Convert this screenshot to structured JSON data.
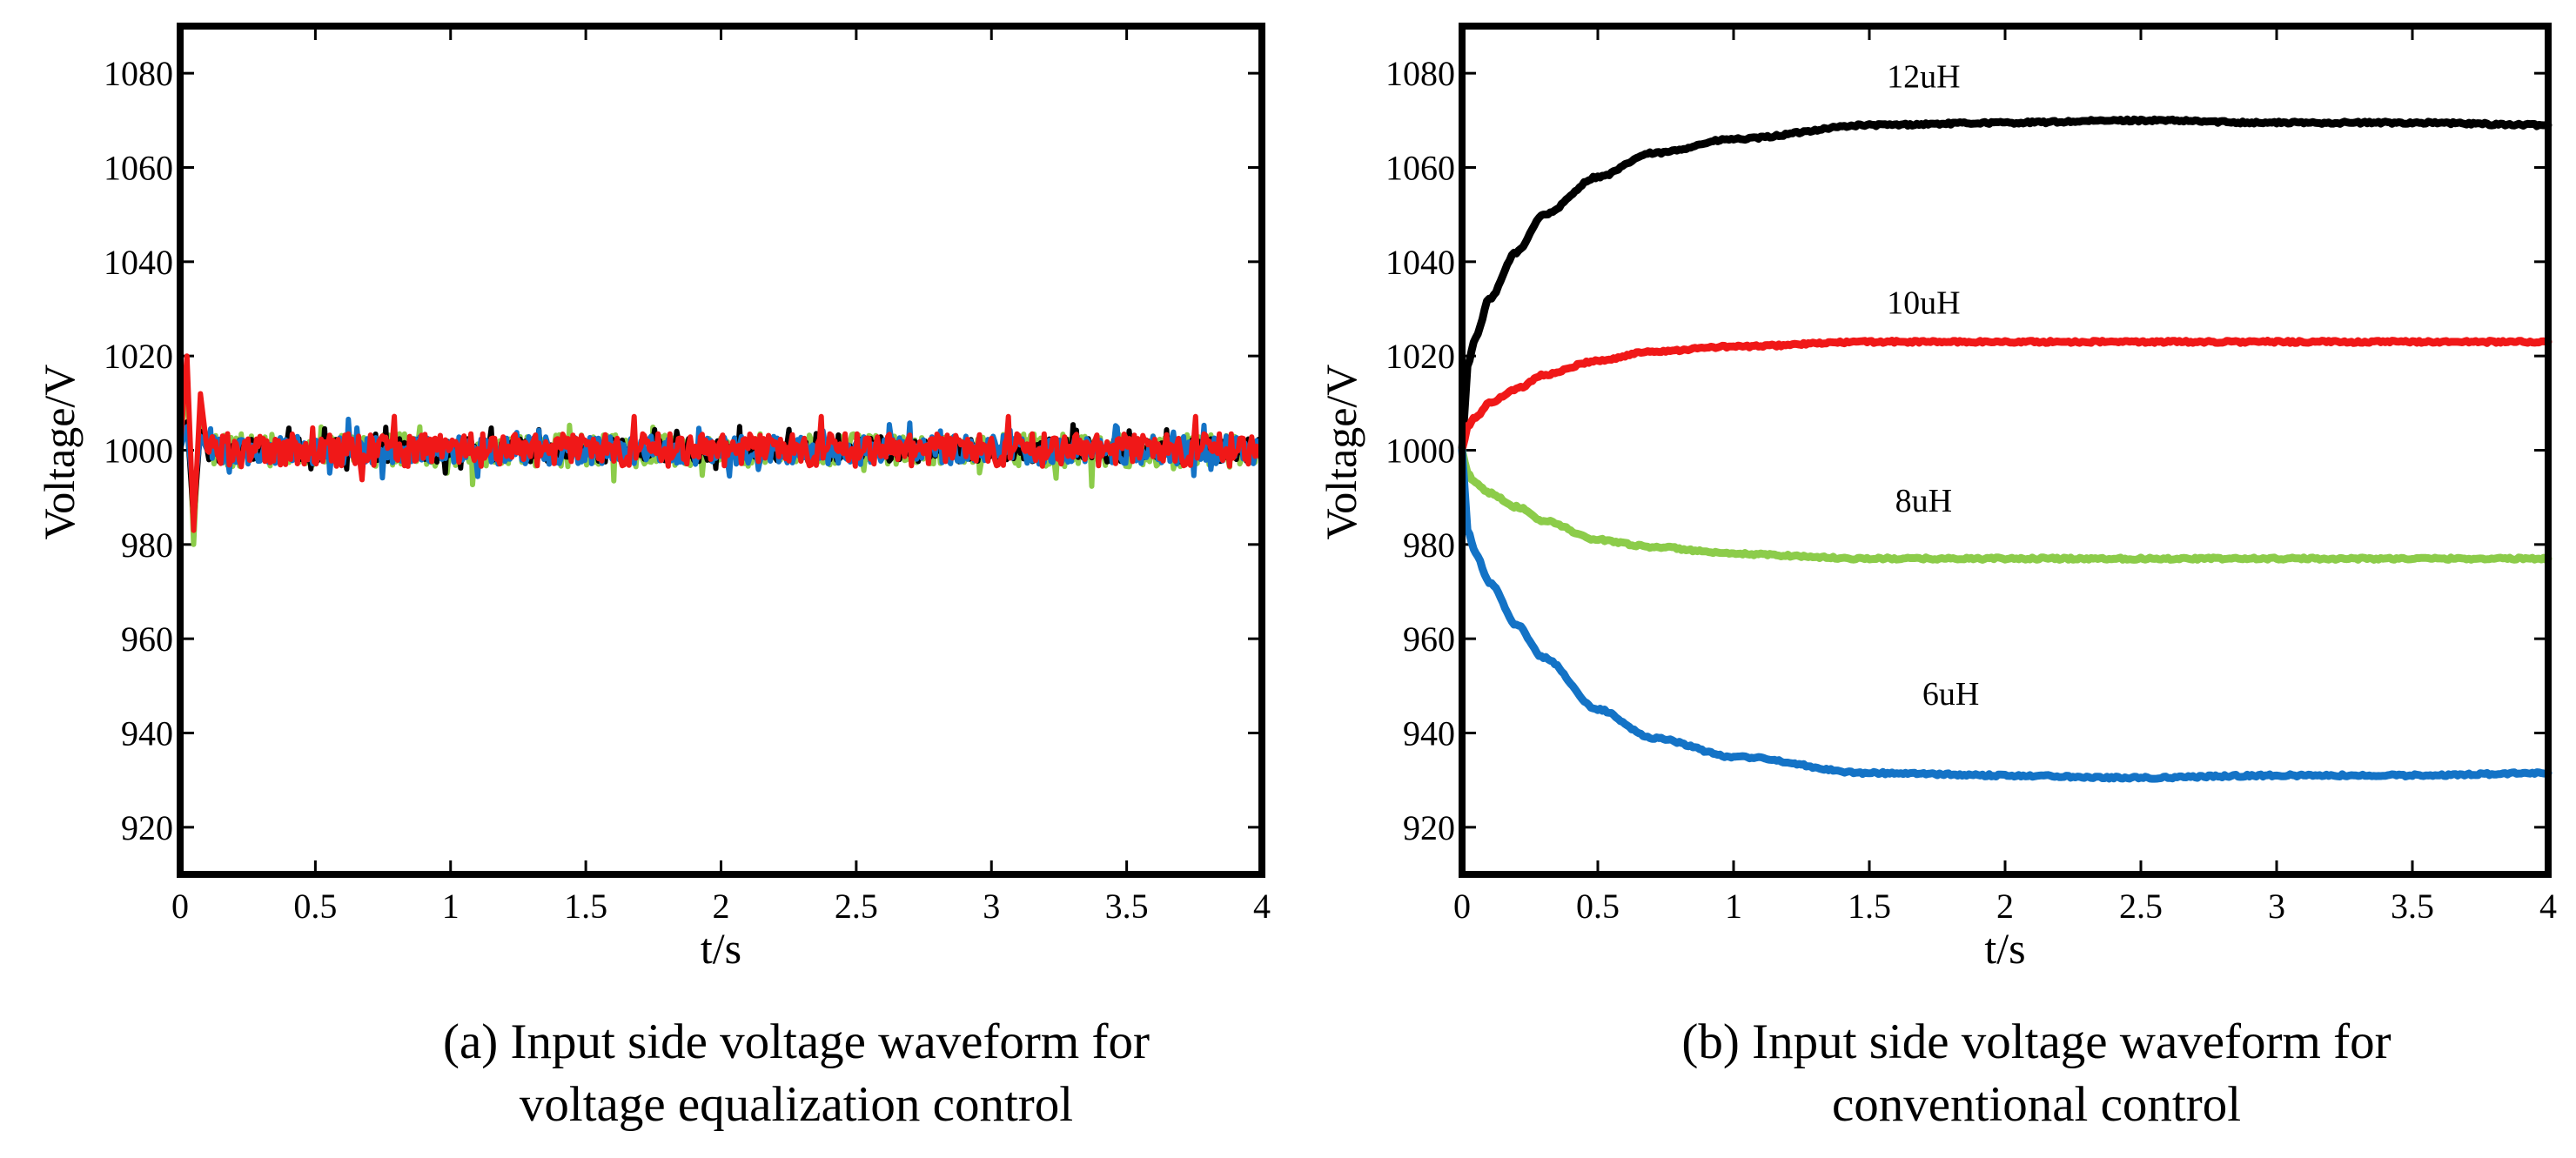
{
  "chart_data": [
    {
      "type": "line",
      "panel": "a",
      "xlabel": "t/s",
      "ylabel": "Voltage/V",
      "xlim": [
        0,
        4
      ],
      "ylim": [
        910,
        1090
      ],
      "xticks": [
        0,
        0.5,
        1,
        1.5,
        2,
        2.5,
        3,
        3.5,
        4
      ],
      "xtick_labels": [
        "0",
        "0.5",
        "1",
        "1.5",
        "2",
        "2.5",
        "3",
        "3.5",
        "4"
      ],
      "yticks": [
        920,
        940,
        960,
        980,
        1000,
        1020,
        1040,
        1060,
        1080
      ],
      "ytick_labels": [
        "920",
        "940",
        "960",
        "980",
        "1000",
        "1020",
        "1040",
        "1060",
        "1080"
      ],
      "caption": [
        "(a) Input side voltage waveform for",
        "voltage equalization control"
      ],
      "series": [
        {
          "name": "green",
          "color": "#8ccc4a",
          "initial_transient": [
            1000,
            1016,
            980,
            1010,
            1000
          ],
          "steady_value": 1000,
          "ripple": 3.5
        },
        {
          "name": "black",
          "color": "#000000",
          "initial_transient": [
            1000,
            1006,
            985,
            1004,
            1000
          ],
          "steady_value": 1000,
          "ripple": 2.5
        },
        {
          "name": "blue",
          "color": "#1473c6",
          "initial_transient": [
            1000,
            1005,
            990,
            1003,
            1000
          ],
          "steady_value": 1000,
          "ripple": 3
        },
        {
          "name": "red",
          "color": "#f01818",
          "initial_transient": [
            1000,
            1020,
            983,
            1012,
            1000
          ],
          "steady_value": 1000,
          "ripple": 3.5
        }
      ]
    },
    {
      "type": "line",
      "panel": "b",
      "xlabel": "t/s",
      "ylabel": "Voltage/V",
      "xlim": [
        0,
        4
      ],
      "ylim": [
        910,
        1090
      ],
      "xticks": [
        0,
        0.5,
        1,
        1.5,
        2,
        2.5,
        3,
        3.5,
        4
      ],
      "xtick_labels": [
        "0",
        "0.5",
        "1",
        "1.5",
        "2",
        "2.5",
        "3",
        "3.5",
        "4"
      ],
      "yticks": [
        920,
        940,
        960,
        980,
        1000,
        1020,
        1040,
        1060,
        1080
      ],
      "ytick_labels": [
        "920",
        "940",
        "960",
        "980",
        "1000",
        "1020",
        "1040",
        "1060",
        "1080"
      ],
      "caption": [
        "(b) Input side voltage waveform for",
        "conventional control"
      ],
      "series": [
        {
          "name": "12uH",
          "color": "#000000",
          "x": [
            0,
            0.02,
            0.05,
            0.1,
            0.2,
            0.3,
            0.5,
            0.7,
            1,
            1.5,
            2,
            2.5,
            3,
            3.5,
            4
          ],
          "y": [
            1000,
            1018,
            1024,
            1032,
            1042,
            1050,
            1058,
            1063,
            1066,
            1069,
            1069.5,
            1070,
            1069.5,
            1069.5,
            1069
          ]
        },
        {
          "name": "10uH",
          "color": "#f01818",
          "x": [
            0,
            0.02,
            0.05,
            0.1,
            0.2,
            0.3,
            0.5,
            0.7,
            1,
            1.5,
            2,
            2.5,
            3,
            3.5,
            4
          ],
          "y": [
            1000,
            1005,
            1007,
            1010,
            1013,
            1016,
            1019,
            1021,
            1022,
            1023,
            1023,
            1023,
            1023,
            1023,
            1023
          ]
        },
        {
          "name": "8uH",
          "color": "#8ccc4a",
          "x": [
            0,
            0.02,
            0.05,
            0.1,
            0.2,
            0.3,
            0.5,
            0.7,
            1,
            1.5,
            2,
            2.5,
            3,
            3.5,
            4
          ],
          "y": [
            1000,
            995,
            993,
            991,
            988,
            985,
            981,
            979.5,
            978,
            977,
            977,
            977,
            977,
            977,
            977
          ]
        },
        {
          "name": "6uH",
          "color": "#1473c6",
          "x": [
            0,
            0.02,
            0.05,
            0.1,
            0.2,
            0.3,
            0.5,
            0.7,
            1,
            1.5,
            2,
            2.5,
            3,
            3.5,
            4
          ],
          "y": [
            1000,
            983,
            978,
            972,
            963,
            956,
            945,
            939,
            935,
            931.5,
            931,
            930.5,
            931,
            931,
            931.5
          ]
        }
      ],
      "annotations": [
        {
          "text": "12uH",
          "x": 1.7,
          "y": 1077
        },
        {
          "text": "10uH",
          "x": 1.7,
          "y": 1029
        },
        {
          "text": "8uH",
          "x": 1.7,
          "y": 987
        },
        {
          "text": "6uH",
          "x": 1.8,
          "y": 946
        }
      ]
    }
  ]
}
